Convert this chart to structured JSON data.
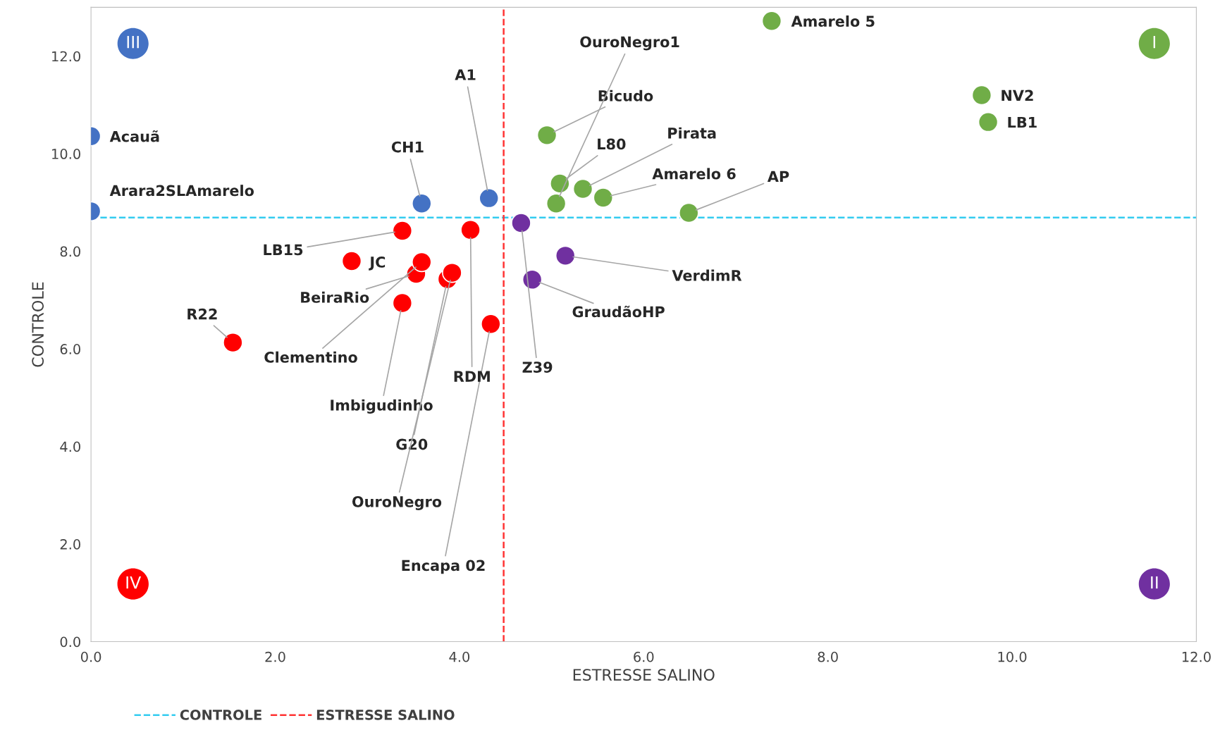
{
  "chart_data": {
    "type": "scatter",
    "xlabel": "ESTRESSE SALINO",
    "ylabel": "CONTROLE",
    "xlim": [
      0,
      12
    ],
    "ylim": [
      0,
      13
    ],
    "xticks": [
      {
        "value": 0,
        "label": "0.0"
      },
      {
        "value": 2,
        "label": "2.0"
      },
      {
        "value": 4,
        "label": "4.0"
      },
      {
        "value": 6,
        "label": "6.0"
      },
      {
        "value": 8,
        "label": "8.0"
      },
      {
        "value": 10,
        "label": "10.0"
      },
      {
        "value": 12,
        "label": "12.0"
      }
    ],
    "yticks": [
      {
        "value": 0,
        "label": "0.0"
      },
      {
        "value": 2,
        "label": "2.0"
      },
      {
        "value": 4,
        "label": "4.0"
      },
      {
        "value": 6,
        "label": "6.0"
      },
      {
        "value": 8,
        "label": "8.0"
      },
      {
        "value": 10,
        "label": "10.0"
      },
      {
        "value": 12,
        "label": "12.0"
      }
    ],
    "grid": false,
    "marker": "circle",
    "legend": "bottom",
    "series": [
      {
        "color": "#70ad47",
        "x": [
          7.39,
          9.67,
          9.74,
          4.95,
          5.09,
          5.34,
          5.56,
          5.05,
          6.49
        ],
        "values": [
          12.72,
          11.2,
          10.65,
          10.38,
          9.39,
          9.28,
          9.1,
          8.98,
          8.79
        ],
        "value_labels": [
          "Amarelo 5",
          "NV2",
          "LB1",
          "Bicudo",
          "L80",
          "Pirata",
          "Amarelo 6",
          "OuroNegro1",
          "AP"
        ]
      },
      {
        "color": "#7030a0",
        "x": [
          4.67,
          5.15,
          4.79
        ],
        "values": [
          8.58,
          7.91,
          7.42
        ],
        "value_labels": [
          "Z39",
          "VerdimR",
          "GraudãoHP"
        ]
      },
      {
        "color": "#4472c4",
        "x": [
          0.0,
          0.0,
          3.59,
          4.32
        ],
        "values": [
          10.36,
          8.82,
          8.98,
          9.09
        ],
        "value_labels": [
          "Acauã",
          "Arara2SLAmarelo",
          "CH1",
          "A1"
        ]
      },
      {
        "color": "#ff0000",
        "x": [
          3.38,
          2.83,
          3.53,
          1.54,
          3.59,
          3.38,
          3.87,
          3.92,
          4.34,
          4.12
        ],
        "values": [
          8.42,
          7.8,
          7.54,
          6.13,
          7.78,
          6.94,
          7.43,
          7.56,
          6.51,
          8.44
        ],
        "value_labels": [
          "LB15",
          "JC",
          "BeiraRio",
          "R22",
          "Clementino",
          "Imbigudinho",
          "G20",
          "OuroNegro",
          "Encapa 02",
          "RDM"
        ]
      }
    ],
    "ref_lines": [
      {
        "axis": "y",
        "value": 8.69,
        "label": "CONTROLE",
        "color": "#33ccf0",
        "line_style": "dashed"
      },
      {
        "axis": "x",
        "value": 4.48,
        "label": "ESTRESSE SALINO",
        "color": "#ff3333",
        "line_style": "dashed"
      }
    ],
    "annotations": [
      "I",
      "II",
      "III",
      "IV"
    ]
  }
}
